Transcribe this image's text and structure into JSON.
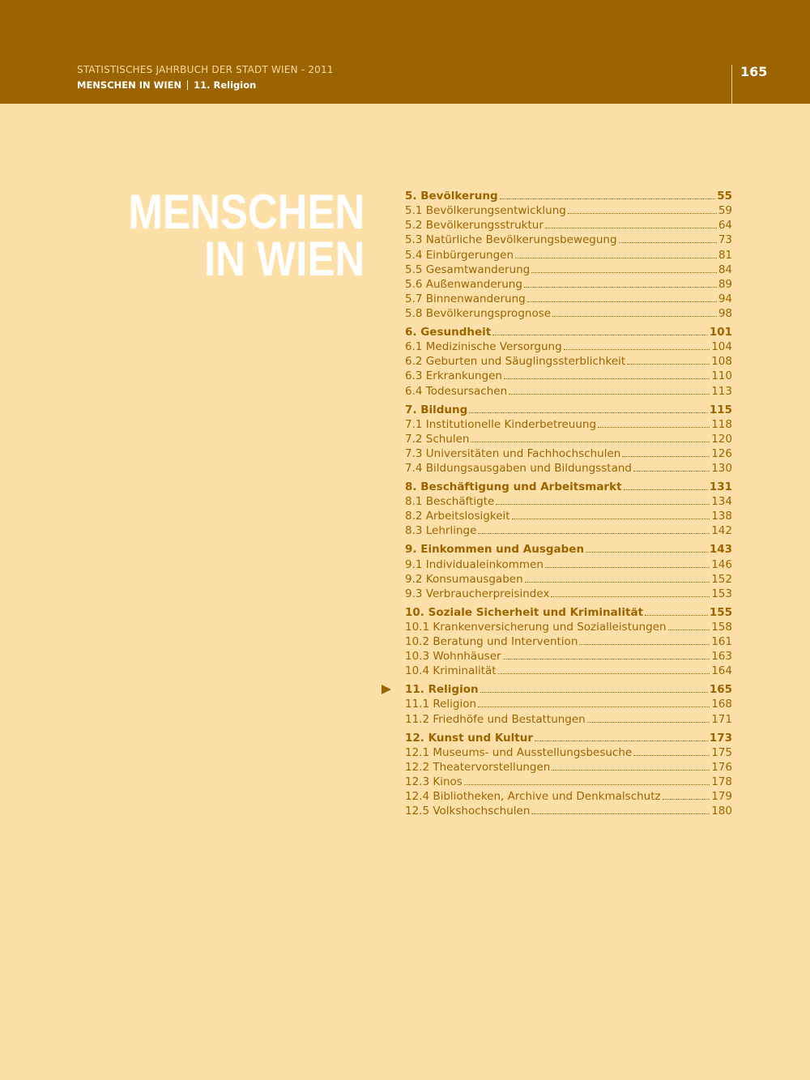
{
  "header": {
    "publication": "STATISTISCHES JAHRBUCH DER STADT WIEN - 2011",
    "section": "MENSCHEN IN WIEN",
    "chapter": "11. Religion",
    "page_number": "165"
  },
  "title": [
    "MENSCHEN",
    "IN WIEN"
  ],
  "toc": {
    "sections": [
      {
        "title": "5. Bevölkerung",
        "page": "55",
        "items": [
          {
            "title": "5.1 Bevölkerungsentwicklung",
            "page": "59"
          },
          {
            "title": "5.2 Bevölkerungsstruktur",
            "page": "64"
          },
          {
            "title": "5.3 Natürliche Bevölkerungsbewegung",
            "page": "73"
          },
          {
            "title": "5.4 Einbürgerungen",
            "page": "81"
          },
          {
            "title": "5.5 Gesamtwanderung",
            "page": "84"
          },
          {
            "title": "5.6 Außenwanderung",
            "page": "89"
          },
          {
            "title": "5.7 Binnenwanderung",
            "page": "94"
          },
          {
            "title": "5.8 Bevölkerungsprognose",
            "page": "98"
          }
        ]
      },
      {
        "title": "6. Gesundheit",
        "page": "101",
        "items": [
          {
            "title": "6.1 Medizinische Versorgung",
            "page": "104"
          },
          {
            "title": "6.2 Geburten und Säuglingssterblichkeit",
            "page": "108"
          },
          {
            "title": "6.3 Erkrankungen",
            "page": "110"
          },
          {
            "title": "6.4 Todesursachen",
            "page": "113"
          }
        ]
      },
      {
        "title": "7. Bildung",
        "page": "115",
        "items": [
          {
            "title": "7.1 Institutionelle Kinderbetreuung",
            "page": "118"
          },
          {
            "title": "7.2 Schulen",
            "page": "120"
          },
          {
            "title": "7.3 Universitäten und Fachhochschulen",
            "page": "126"
          },
          {
            "title": "7.4 Bildungsausgaben und Bildungsstand",
            "page": "130"
          }
        ]
      },
      {
        "title": "8. Beschäftigung und Arbeitsmarkt",
        "page": "131",
        "items": [
          {
            "title": "8.1 Beschäftigte",
            "page": "134"
          },
          {
            "title": "8.2 Arbeitslosigkeit",
            "page": "138"
          },
          {
            "title": "8.3 Lehrlinge",
            "page": "142"
          }
        ]
      },
      {
        "title": "9. Einkommen und Ausgaben",
        "page": "143",
        "items": [
          {
            "title": "9.1 Individualeinkommen",
            "page": "146"
          },
          {
            "title": "9.2 Konsumausgaben",
            "page": "152"
          },
          {
            "title": "9.3 Verbraucherpreisindex",
            "page": "153"
          }
        ]
      },
      {
        "title": "10. Soziale Sicherheit und Kriminalität",
        "page": "155",
        "items": [
          {
            "title": "10.1 Krankenversicherung und Sozialleistungen",
            "page": "158"
          },
          {
            "title": "10.2 Beratung und Intervention",
            "page": "161"
          },
          {
            "title": "10.3 Wohnhäuser",
            "page": "163"
          },
          {
            "title": "10.4 Kriminalität",
            "page": "164"
          }
        ]
      },
      {
        "title": "11. Religion",
        "page": "165",
        "items": [
          {
            "title": "11.1 Religion",
            "page": "168"
          },
          {
            "title": "11.2 Friedhöfe und Bestattungen",
            "page": "171"
          }
        ]
      },
      {
        "title": "12. Kunst und Kultur",
        "page": "173",
        "items": [
          {
            "title": "12.1 Museums- und Ausstellungsbesuche",
            "page": "175"
          },
          {
            "title": "12.2 Theatervorstellungen",
            "page": "176"
          },
          {
            "title": "12.3 Kinos",
            "page": "178"
          },
          {
            "title": "12.4 Bibliotheken, Archive und Denkmalschutz",
            "page": "179"
          },
          {
            "title": "12.5 Volkshochschulen",
            "page": "180"
          }
        ]
      }
    ]
  }
}
